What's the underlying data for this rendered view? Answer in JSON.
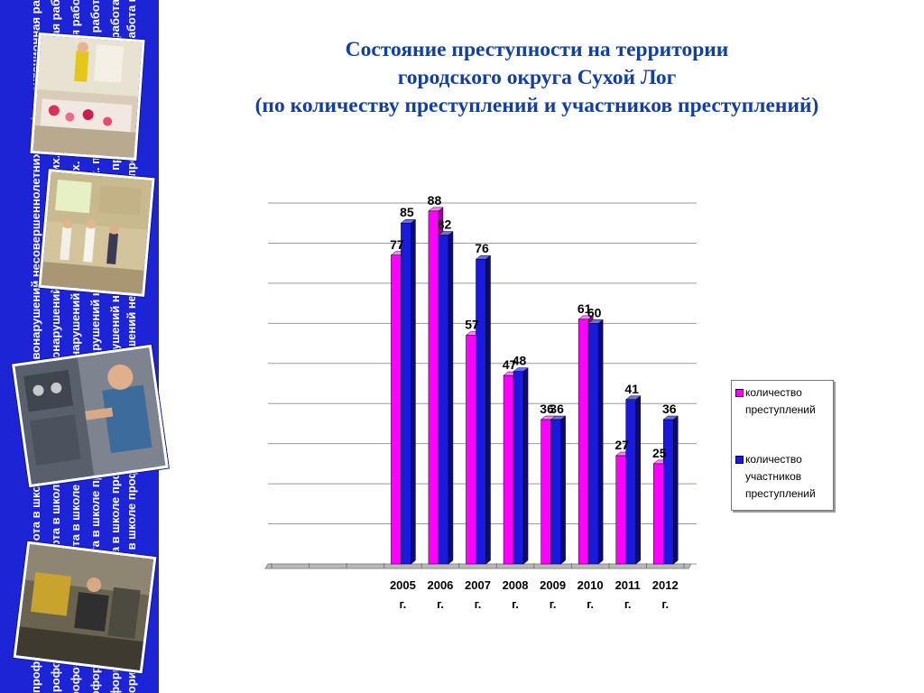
{
  "title": {
    "lines": [
      "Состояние преступности на территории",
      "городского округа Сухой Лог",
      "(по количеству преступлений и участников преступлений)"
    ]
  },
  "sidebar": {
    "text_columns": [
      "профориентационная работа в школе профилактики правонарушений несовершеннолетних."
    ],
    "photos": [
      "children-exhibition-photo",
      "children-performance-photo",
      "student-workshop-photo",
      "workshop-machines-photo"
    ]
  },
  "chart_data": {
    "type": "bar",
    "title": "",
    "categories": [
      "",
      "",
      "",
      "2005 г.",
      "2006 г.",
      "2007 г.",
      "2008 г.",
      "2009 г.",
      "2010 г.",
      "2011 г.",
      "2012 г."
    ],
    "series": [
      {
        "name": "количество преступлений",
        "color": "#ff00ff",
        "values": [
          null,
          null,
          null,
          77,
          88,
          57,
          47,
          36,
          61,
          27,
          25
        ]
      },
      {
        "name": "количество участников преступлений",
        "color": "#1a1adc",
        "values": [
          null,
          null,
          null,
          85,
          82,
          76,
          48,
          36,
          60,
          41,
          36
        ]
      }
    ],
    "ylim": [
      0,
      90
    ],
    "ystep": 10,
    "grid": true,
    "legend_position": "right",
    "data_labels": true,
    "style": "3d"
  },
  "colors": {
    "sidebar": "#1d24d6",
    "title": "#123fa3",
    "series_1": "#ff00ff",
    "series_2": "#1a1adc"
  }
}
